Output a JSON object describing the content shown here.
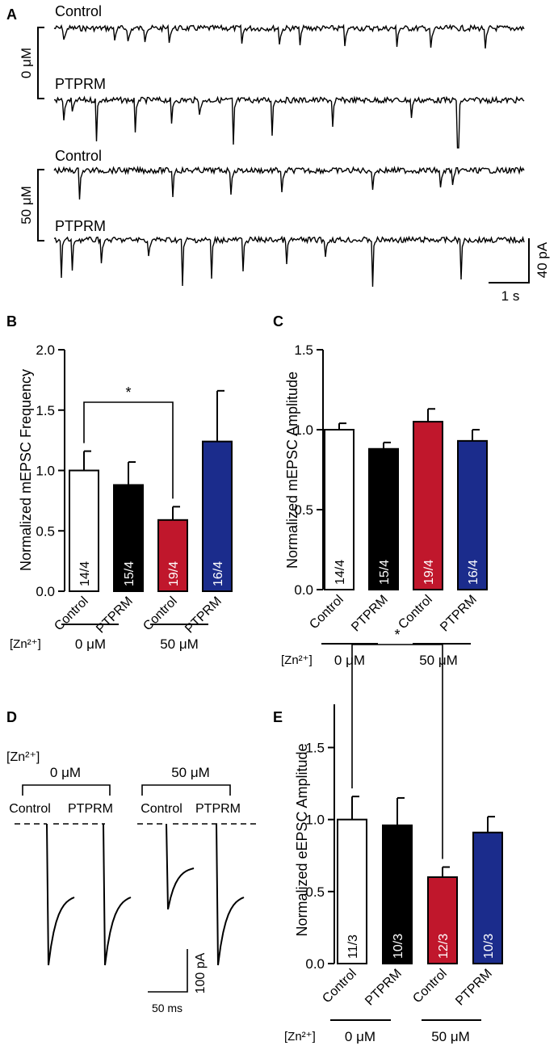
{
  "panels": {
    "A": "A",
    "B": "B",
    "C": "C",
    "D": "D",
    "E": "E"
  },
  "colors": {
    "control": "#ffffff",
    "ptprm": "#000000",
    "zn_control": "#c0172c",
    "zn_ptprm": "#1b2c8c"
  },
  "panel_a": {
    "traces": [
      {
        "label": "Control",
        "events": [
          0.12,
          0.76,
          0.94,
          1.15,
          1.46,
          2.38,
          2.87,
          3.12,
          3.7,
          4.36,
          4.8,
          5.49
        ]
      },
      {
        "label": "PTPRM",
        "events": [
          0.12,
          0.22,
          0.53,
          1.03,
          1.49,
          1.85,
          2.28,
          2.77,
          3.54,
          4.54,
          5.14
        ]
      },
      {
        "label": "Control",
        "events": [
          0.32,
          1.5,
          2.25,
          2.9,
          4.05,
          4.92,
          5.07
        ]
      },
      {
        "label": "PTPRM",
        "events": [
          0.08,
          0.22,
          0.6,
          1.2,
          1.63,
          2.0,
          2.4,
          2.95,
          3.45,
          4.05,
          5.18
        ]
      }
    ],
    "group_0": "0 μM",
    "group_50": "50 μM",
    "scale_y": "40 pA",
    "scale_x": "1 s"
  },
  "panel_d": {
    "zn_label": "[Zn²⁺]",
    "group_0": "0 μM",
    "group_50": "50 μM",
    "trace_labels": [
      "Control",
      "PTPRM",
      "Control",
      "PTPRM"
    ],
    "peaks_pA": [
      -430,
      -430,
      -260,
      -430
    ],
    "scale_y": "100 pA",
    "scale_x": "50 ms"
  },
  "chart_data": [
    {
      "type": "bar",
      "panel": "B",
      "ylabel": "Normalized mEPSC Frequency",
      "ylim": [
        0,
        2.0
      ],
      "yticks": [
        "0.0",
        "0.5",
        "1.0",
        "1.5",
        "2.0"
      ],
      "categories": [
        "Control",
        "PTPRM",
        "Control",
        "PTPRM"
      ],
      "values": [
        1.0,
        0.88,
        0.59,
        1.24
      ],
      "errors": [
        0.16,
        0.19,
        0.11,
        0.42
      ],
      "n_labels": [
        "14/4",
        "15/4",
        "19/4",
        "16/4"
      ],
      "significance": {
        "from": 0,
        "to": 2,
        "label": "*"
      },
      "group_label": "[Zn²⁺]",
      "groups": [
        "0 μM",
        "50 μM"
      ]
    },
    {
      "type": "bar",
      "panel": "C",
      "ylabel": "Normalized mEPSC Amplitude",
      "ylim": [
        0,
        1.5
      ],
      "yticks": [
        "0.0",
        "0.5",
        "1.0",
        "1.5"
      ],
      "categories": [
        "Control",
        "PTPRM",
        "Control",
        "PTPRM"
      ],
      "values": [
        1.0,
        0.88,
        1.05,
        0.93
      ],
      "errors": [
        0.04,
        0.04,
        0.08,
        0.07
      ],
      "n_labels": [
        "14/4",
        "15/4",
        "19/4",
        "16/4"
      ],
      "group_label": "[Zn²⁺]",
      "groups": [
        "0 μM",
        "50 μM"
      ]
    },
    {
      "type": "bar",
      "panel": "E",
      "ylabel": "Normalized eEPSC Amplitude",
      "ylim": [
        0,
        1.8
      ],
      "yticks": [
        "0.0",
        "0.5",
        "1.0",
        "1.5"
      ],
      "categories": [
        "Control",
        "PTPRM",
        "Control",
        "PTPRM"
      ],
      "values": [
        1.0,
        0.96,
        0.6,
        0.91
      ],
      "errors": [
        0.16,
        0.19,
        0.07,
        0.11
      ],
      "n_labels": [
        "11/3",
        "10/3",
        "12/3",
        "10/3"
      ],
      "significance": {
        "from": 0,
        "to": 2,
        "label": "*"
      },
      "group_label": "[Zn²⁺]",
      "groups": [
        "0 μM",
        "50 μM"
      ]
    }
  ]
}
